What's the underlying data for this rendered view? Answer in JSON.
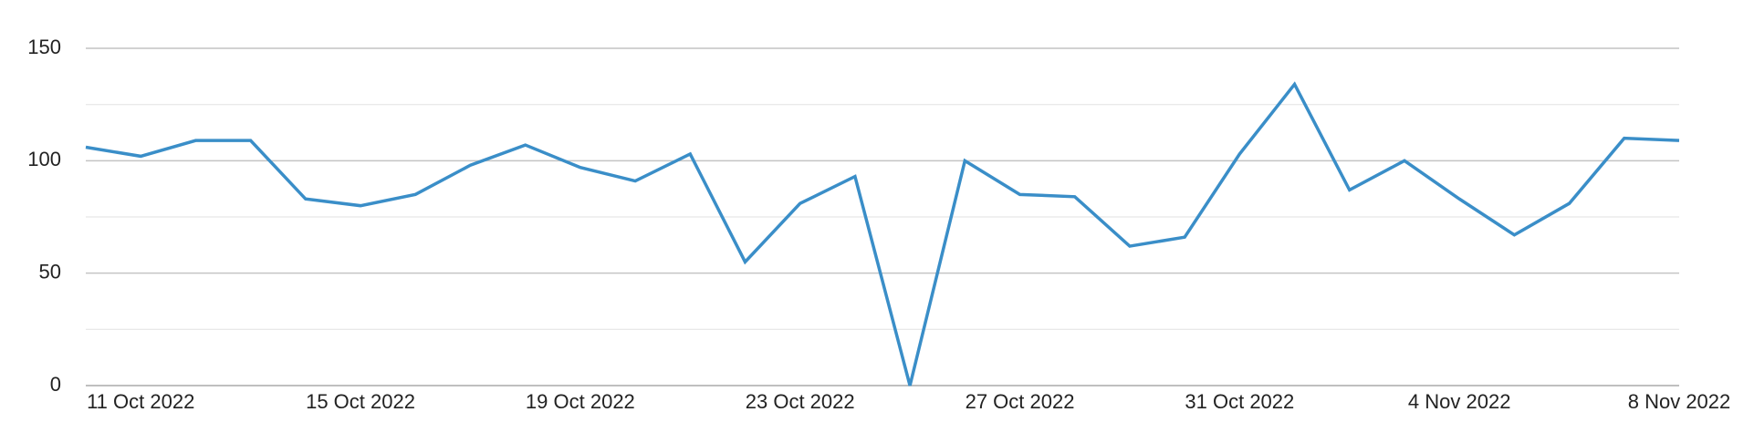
{
  "chart_data": {
    "type": "line",
    "categories": [
      null,
      "11 Oct 2022",
      null,
      null,
      null,
      "15 Oct 2022",
      null,
      null,
      null,
      "19 Oct 2022",
      null,
      null,
      null,
      "23 Oct 2022",
      null,
      null,
      null,
      "27 Oct 2022",
      null,
      null,
      null,
      "31 Oct 2022",
      null,
      null,
      null,
      "4 Nov 2022",
      null,
      null,
      null,
      "8 Nov 2022"
    ],
    "series": [
      {
        "color": "#3a8ec8",
        "values": [
          106,
          102,
          109,
          109,
          83,
          80,
          85,
          98,
          107,
          97,
          91,
          103,
          55,
          81,
          93,
          0,
          100,
          85,
          84,
          62,
          66,
          103,
          134,
          87,
          100,
          83,
          67,
          81,
          110,
          109
        ]
      }
    ],
    "ylim": [
      0,
      150
    ],
    "yticks": [
      0,
      50,
      100,
      150
    ],
    "minor_yticks": [
      25,
      75,
      125
    ],
    "grid": true
  }
}
